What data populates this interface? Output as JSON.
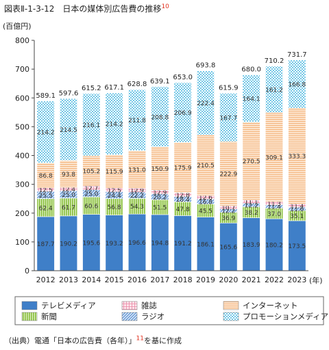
{
  "figure": {
    "title": "図表Ⅱ-1-3-12　日本の媒体別広告費の推移",
    "title_ref": "10",
    "source_prefix": "（出典）電通「日本の広告費（各年）」",
    "source_ref": "11",
    "source_suffix": "を基に作成"
  },
  "chart_data": {
    "type": "bar",
    "stacked": true,
    "unit_label": "(百億円)",
    "x_unit": "(年)",
    "categories": [
      "2012",
      "2013",
      "2014",
      "2015",
      "2016",
      "2017",
      "2018",
      "2019",
      "2020",
      "2021",
      "2022",
      "2023"
    ],
    "ylim": [
      0,
      800
    ],
    "yticks": [
      0,
      100,
      200,
      300,
      400,
      500,
      600,
      700,
      800
    ],
    "grid": false,
    "legend_position": "bottom",
    "series": [
      {
        "name": "テレビメディア",
        "values": [
          187.7,
          190.2,
          195.6,
          193.2,
          196.6,
          194.8,
          191.2,
          186.1,
          165.6,
          183.9,
          180.2,
          173.5
        ],
        "color": "#3f7fc8",
        "pattern": "solid"
      },
      {
        "name": "新聞",
        "values": [
          62.4,
          61.7,
          60.6,
          56.8,
          54.3,
          51.5,
          47.8,
          45.5,
          36.9,
          38.2,
          37.0,
          35.1
        ],
        "color": "#9ccb52",
        "pattern": "vertical-lines"
      },
      {
        "name": "ラジオ",
        "values": [
          25.5,
          25.0,
          25.0,
          24.4,
          22.2,
          20.2,
          18.4,
          16.8,
          12.2,
          12.2,
          11.4,
          11.6
        ],
        "color": "#7aa8dc",
        "pattern": "diagonal-lines"
      },
      {
        "name": "雑誌",
        "values": [
          12.5,
          12.4,
          12.7,
          12.5,
          12.9,
          12.9,
          12.8,
          12.6,
          10.7,
          11.1,
          11.3,
          11.4
        ],
        "color": "#ef9fb5",
        "pattern": "grid"
      },
      {
        "name": "インターネット",
        "values": [
          86.8,
          93.8,
          105.2,
          115.9,
          131.0,
          150.9,
          175.9,
          210.5,
          222.9,
          270.5,
          309.1,
          333.3
        ],
        "color": "#f7c79a",
        "pattern": "horizontal-lines"
      },
      {
        "name": "プロモーションメディア",
        "values": [
          214.2,
          214.5,
          216.1,
          214.2,
          211.8,
          208.8,
          206.9,
          222.4,
          167.7,
          164.1,
          161.2,
          166.8
        ],
        "color": "#7fd2ee",
        "pattern": "dots"
      }
    ],
    "totals": [
      589.1,
      597.6,
      615.2,
      617.1,
      628.8,
      639.1,
      653.0,
      693.8,
      615.9,
      680.0,
      710.2,
      731.7
    ],
    "legend_order": [
      "テレビメディア",
      "新聞",
      "雑誌",
      "ラジオ",
      "インターネット",
      "プロモーションメディア"
    ]
  }
}
